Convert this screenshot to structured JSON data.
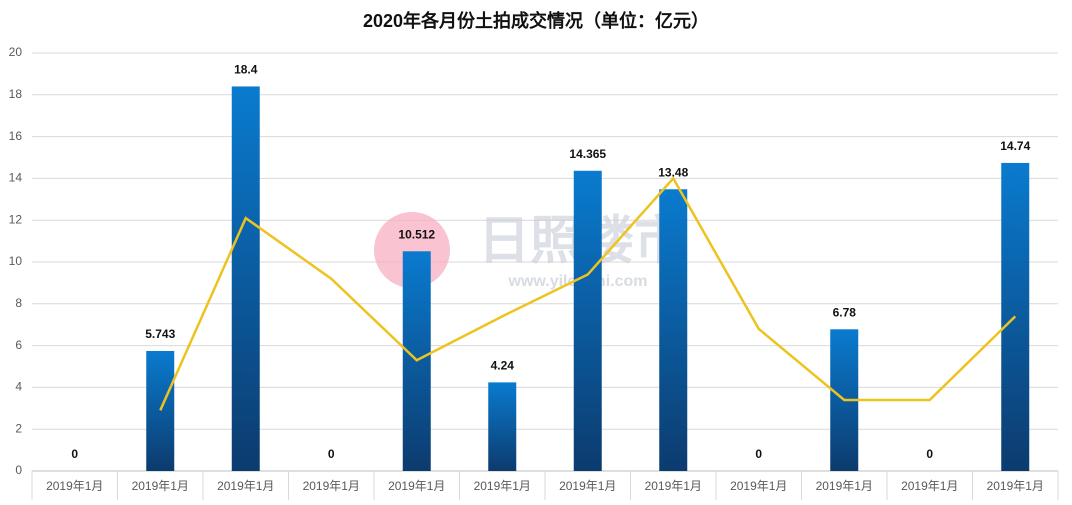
{
  "chart_data": {
    "type": "combo",
    "title": "2020年各月份土拍成交情况（单位：亿元）",
    "categories": [
      "2019年1月",
      "2019年1月",
      "2019年1月",
      "2019年1月",
      "2019年1月",
      "2019年1月",
      "2019年1月",
      "2019年1月",
      "2019年1月",
      "2019年1月",
      "2019年1月",
      "2019年1月"
    ],
    "series": [
      {
        "type": "bar",
        "color": "#0a7bcf",
        "values": [
          0,
          5.743,
          18.4,
          0,
          10.512,
          4.24,
          14.365,
          13.48,
          0,
          6.78,
          0,
          14.74
        ]
      },
      {
        "type": "line",
        "color": "#eec320",
        "values": [
          null,
          2.9,
          12.1,
          9.2,
          5.3,
          7.4,
          9.4,
          14.0,
          6.8,
          3.4,
          3.4,
          7.4
        ]
      }
    ],
    "ylim": [
      0,
      20
    ],
    "yticks": [
      0,
      2,
      4,
      6,
      8,
      10,
      12,
      14,
      16,
      18,
      20
    ],
    "grid": true,
    "watermark": [
      "日照楼市",
      "www.yiloushi.com"
    ]
  }
}
